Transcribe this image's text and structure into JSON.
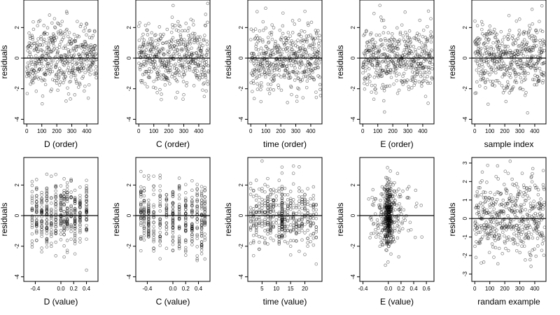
{
  "figure": {
    "point_color": "#000000",
    "background": "#ffffff"
  },
  "chart_data": [
    {
      "type": "scatter",
      "xlabel": "D (order)",
      "ylabel": "residuals",
      "xlim": [
        -20,
        475
      ],
      "ylim": [
        -4.3,
        3.8
      ],
      "xticks": [
        0,
        100,
        200,
        300,
        400
      ],
      "xtick_labels": [
        "0",
        "100",
        "200",
        "300",
        "400"
      ],
      "yticks": [
        -4,
        -2,
        0,
        2
      ],
      "ytick_labels": [
        "-4",
        "-2",
        "0",
        "2"
      ],
      "hline": 0,
      "grid": false,
      "gen": {
        "kind": "order",
        "seed": 11,
        "n": 470
      }
    },
    {
      "type": "scatter",
      "xlabel": "C (order)",
      "ylabel": "residuals",
      "xlim": [
        -20,
        475
      ],
      "ylim": [
        -4.3,
        3.8
      ],
      "xticks": [
        0,
        100,
        200,
        300,
        400
      ],
      "xtick_labels": [
        "0",
        "100",
        "200",
        "300",
        "400"
      ],
      "yticks": [
        -4,
        -2,
        0,
        2
      ],
      "ytick_labels": [
        "-4",
        "-2",
        "0",
        "2"
      ],
      "hline": 0,
      "grid": false,
      "gen": {
        "kind": "order",
        "seed": 23,
        "n": 470
      }
    },
    {
      "type": "scatter",
      "xlabel": "time (order)",
      "ylabel": "residuals",
      "xlim": [
        -20,
        475
      ],
      "ylim": [
        -4.3,
        3.8
      ],
      "xticks": [
        0,
        100,
        200,
        300,
        400
      ],
      "xtick_labels": [
        "0",
        "100",
        "200",
        "300",
        "400"
      ],
      "yticks": [
        -4,
        -2,
        0,
        2
      ],
      "ytick_labels": [
        "-4",
        "-2",
        "0",
        "2"
      ],
      "hline": 0,
      "grid": false,
      "gen": {
        "kind": "order",
        "seed": 37,
        "n": 470
      }
    },
    {
      "type": "scatter",
      "xlabel": "E (order)",
      "ylabel": "residuals",
      "xlim": [
        -20,
        475
      ],
      "ylim": [
        -4.3,
        3.8
      ],
      "xticks": [
        0,
        100,
        200,
        300,
        400
      ],
      "xtick_labels": [
        "0",
        "100",
        "200",
        "300",
        "400"
      ],
      "yticks": [
        -4,
        -2,
        0,
        2
      ],
      "ytick_labels": [
        "-4",
        "-2",
        "0",
        "2"
      ],
      "hline": 0,
      "grid": false,
      "gen": {
        "kind": "order",
        "seed": 41,
        "n": 470
      }
    },
    {
      "type": "scatter",
      "xlabel": "sample index",
      "ylabel": "residuals",
      "xlim": [
        -20,
        475
      ],
      "ylim": [
        -4.3,
        3.8
      ],
      "xticks": [
        0,
        100,
        200,
        300,
        400
      ],
      "xtick_labels": [
        "0",
        "100",
        "200",
        "300",
        "400"
      ],
      "yticks": [
        -4,
        -2,
        0,
        2
      ],
      "ytick_labels": [
        "-4",
        "-2",
        "0",
        "2"
      ],
      "hline": 0,
      "grid": false,
      "gen": {
        "kind": "order",
        "seed": 53,
        "n": 470
      }
    },
    {
      "type": "scatter",
      "xlabel": "D (value)",
      "ylabel": "residuals",
      "xlim": [
        -0.58,
        0.58
      ],
      "ylim": [
        -4.3,
        3.8
      ],
      "xticks": [
        -0.4,
        0,
        0.2,
        0.4
      ],
      "xtick_labels": [
        "-0.4",
        "0.0",
        "0.2",
        "0.4"
      ],
      "yticks": [
        -4,
        -2,
        0,
        2
      ],
      "ytick_labels": [
        "-4",
        "-2",
        "0",
        "2"
      ],
      "hline": 0,
      "grid": false,
      "gen": {
        "kind": "discrete",
        "seed": 61,
        "n": 470,
        "levels": [
          -0.45,
          -0.38,
          -0.3,
          -0.22,
          -0.15,
          -0.08,
          0,
          0.05,
          0.1,
          0.16,
          0.22,
          0.3,
          0.4
        ]
      }
    },
    {
      "type": "scatter",
      "xlabel": "C (value)",
      "ylabel": "residuals",
      "xlim": [
        -0.58,
        0.58
      ],
      "ylim": [
        -4.3,
        3.8
      ],
      "xticks": [
        -0.4,
        0,
        0.2,
        0.4
      ],
      "xtick_labels": [
        "-0.4",
        "0.0",
        "0.2",
        "0.4"
      ],
      "yticks": [
        -4,
        -2,
        0,
        2
      ],
      "ytick_labels": [
        "-4",
        "-2",
        "0",
        "2"
      ],
      "hline": 0,
      "grid": false,
      "gen": {
        "kind": "discrete",
        "seed": 67,
        "n": 470,
        "levels": [
          -0.5,
          -0.45,
          -0.38,
          -0.3,
          -0.2,
          -0.1,
          0,
          0.1,
          0.2,
          0.3,
          0.38,
          0.45,
          0.5
        ]
      }
    },
    {
      "type": "scatter",
      "xlabel": "time (value)",
      "ylabel": "residuals",
      "xlim": [
        0,
        26
      ],
      "ylim": [
        -4.3,
        3.8
      ],
      "xticks": [
        5,
        10,
        15,
        20
      ],
      "xtick_labels": [
        "5",
        "10",
        "15",
        "20"
      ],
      "yticks": [
        -4,
        -2,
        0,
        2
      ],
      "ytick_labels": [
        "-4",
        "-2",
        "0",
        "2"
      ],
      "hline": 0,
      "grid": false,
      "gen": {
        "kind": "time",
        "seed": 71,
        "n": 470
      }
    },
    {
      "type": "scatter",
      "xlabel": "E (value)",
      "ylabel": "residuals",
      "xlim": [
        -0.45,
        0.72
      ],
      "ylim": [
        -4.3,
        3.8
      ],
      "xticks": [
        -0.4,
        0,
        0.2,
        0.4,
        0.6
      ],
      "xtick_labels": [
        "-0.4",
        "0.0",
        "0.2",
        "0.4",
        "0.6"
      ],
      "yticks": [
        -4,
        -2,
        0,
        2
      ],
      "ytick_labels": [
        "-4",
        "-2",
        "0",
        "2"
      ],
      "hline": 0,
      "grid": false,
      "gen": {
        "kind": "evalue",
        "seed": 79,
        "n": 470
      }
    },
    {
      "type": "scatter",
      "xlabel": "randam example",
      "ylabel": "residuals",
      "xlim": [
        -20,
        475
      ],
      "ylim": [
        -3.4,
        3.3
      ],
      "xticks": [
        0,
        100,
        200,
        300,
        400
      ],
      "xtick_labels": [
        "0",
        "100",
        "200",
        "300",
        "400"
      ],
      "yticks": [
        -3,
        -2,
        -1,
        0,
        1,
        2,
        3
      ],
      "ytick_labels": [
        "-3",
        "-2",
        "-1",
        "0",
        "1",
        "2",
        "3"
      ],
      "hline": 0,
      "grid": false,
      "gen": {
        "kind": "random",
        "seed": 97,
        "n": 470
      }
    }
  ]
}
